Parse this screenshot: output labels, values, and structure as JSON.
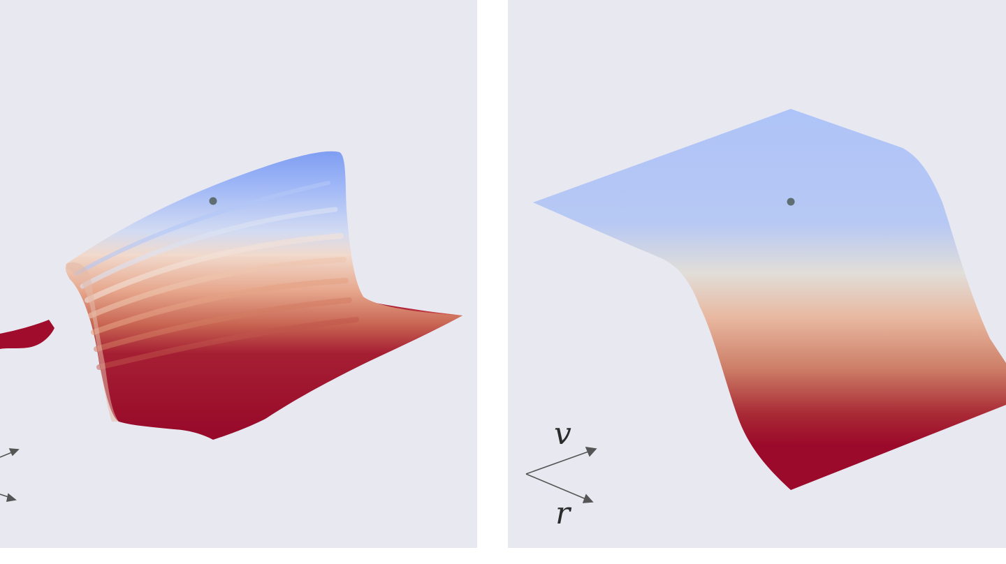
{
  "colors": {
    "panel_background": "#e8e8f1",
    "surface_high": "#8aa7f4",
    "surface_mid": "#e6d8d0",
    "surface_low": "#9b0a2a",
    "axis_arrow": "#555555",
    "marker": "#5f6e72"
  },
  "right_panel": {
    "axis_v_label": "v",
    "axis_r_label": "r"
  }
}
